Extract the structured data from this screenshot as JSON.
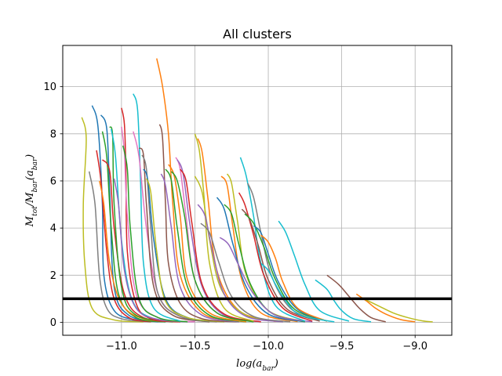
{
  "chart_data": {
    "type": "line",
    "title": "All clusters",
    "xlabel": "log(a_bar)",
    "ylabel": "M_tot/M_bar(a_bar)",
    "xlim": [
      -11.4,
      -8.75
    ],
    "ylim": [
      -0.55,
      11.75
    ],
    "grid": true,
    "legend": "none",
    "x_ticks": [
      -11.0,
      -10.5,
      -10.0,
      -9.5,
      -9.0
    ],
    "x_tick_labels": [
      "−11.0",
      "−10.5",
      "−10.0",
      "−9.5",
      "−9.0"
    ],
    "y_ticks": [
      0,
      2,
      4,
      6,
      8,
      10
    ],
    "y_tick_labels": [
      "0",
      "2",
      "4",
      "6",
      "8",
      "10"
    ],
    "reference_line": {
      "y": 1.0,
      "color": "#000000"
    },
    "colors": [
      "#1f77b4",
      "#ff7f0e",
      "#2ca02c",
      "#d62728",
      "#9467bd",
      "#8c564b",
      "#e377c2",
      "#7f7f7f",
      "#bcbd22",
      "#17becf"
    ],
    "series": [
      {
        "x": [
          -11.27,
          -11.24,
          -11.26,
          -11.25,
          -11.2,
          -11.05,
          -10.85
        ],
        "y": [
          8.7,
          7.8,
          5.0,
          2.5,
          0.6,
          0.1,
          0.02
        ],
        "color": "#bcbd22"
      },
      {
        "x": [
          -11.22,
          -11.18,
          -11.15,
          -11.1,
          -11.0,
          -10.8
        ],
        "y": [
          6.4,
          5.0,
          2.0,
          0.6,
          0.15,
          0.02
        ],
        "color": "#7f7f7f"
      },
      {
        "x": [
          -11.2,
          -11.16,
          -11.13,
          -11.12,
          -11.05,
          -10.9,
          -10.7
        ],
        "y": [
          9.2,
          8.3,
          5.0,
          2.0,
          0.5,
          0.1,
          0.02
        ],
        "color": "#1f77b4"
      },
      {
        "x": [
          -11.17,
          -11.14,
          -11.1,
          -11.05,
          -10.95,
          -10.8
        ],
        "y": [
          7.3,
          6.0,
          3.0,
          1.0,
          0.2,
          0.02
        ],
        "color": "#d62728"
      },
      {
        "x": [
          -11.14,
          -11.1,
          -11.08,
          -11.05,
          -10.95,
          -10.75
        ],
        "y": [
          8.8,
          8.2,
          5.5,
          1.5,
          0.3,
          0.02
        ],
        "color": "#1f77b4"
      },
      {
        "x": [
          -11.13,
          -11.1,
          -11.07,
          -11.02,
          -10.9,
          -10.7
        ],
        "y": [
          8.1,
          7.0,
          4.0,
          1.2,
          0.2,
          0.02
        ],
        "color": "#2ca02c"
      },
      {
        "x": [
          -11.15,
          -11.12,
          -11.08,
          -11.0,
          -10.85,
          -10.6
        ],
        "y": [
          6.0,
          5.0,
          2.5,
          0.8,
          0.15,
          0.02
        ],
        "color": "#ff7f0e"
      },
      {
        "x": [
          -11.13,
          -11.08,
          -11.05,
          -10.98,
          -10.85,
          -10.6
        ],
        "y": [
          6.9,
          6.4,
          4.0,
          1.2,
          0.2,
          0.02
        ],
        "color": "#d62728"
      },
      {
        "x": [
          -11.08,
          -11.06,
          -11.05,
          -11.0,
          -10.9,
          -10.65
        ],
        "y": [
          8.3,
          7.9,
          5.0,
          1.5,
          0.3,
          0.02
        ],
        "color": "#2ca02c"
      },
      {
        "x": [
          -11.07,
          -11.04,
          -11.0,
          -10.93,
          -10.8,
          -10.55
        ],
        "y": [
          8.2,
          7.0,
          3.5,
          1.0,
          0.2,
          0.02
        ],
        "color": "#17becf"
      },
      {
        "x": [
          -11.0,
          -10.98,
          -10.97,
          -10.96,
          -10.9,
          -10.8,
          -10.6
        ],
        "y": [
          9.1,
          8.4,
          6.5,
          3.0,
          0.8,
          0.15,
          0.02
        ],
        "color": "#d62728"
      },
      {
        "x": [
          -11.05,
          -11.02,
          -10.98,
          -10.9,
          -10.75,
          -10.5
        ],
        "y": [
          6.1,
          5.0,
          2.2,
          0.6,
          0.12,
          0.02
        ],
        "color": "#9467bd"
      },
      {
        "x": [
          -11.0,
          -10.98,
          -10.96,
          -10.9,
          -10.75,
          -10.5
        ],
        "y": [
          8.3,
          7.2,
          4.5,
          1.2,
          0.2,
          0.02
        ],
        "color": "#e377c2"
      },
      {
        "x": [
          -10.99,
          -10.96,
          -10.94,
          -10.88,
          -10.75,
          -10.55
        ],
        "y": [
          7.5,
          6.5,
          4.0,
          1.0,
          0.2,
          0.02
        ],
        "color": "#2ca02c"
      },
      {
        "x": [
          -10.92,
          -10.89,
          -10.87,
          -10.85,
          -10.78,
          -10.6
        ],
        "y": [
          9.7,
          9.0,
          6.0,
          2.5,
          0.6,
          0.05
        ],
        "color": "#17becf"
      },
      {
        "x": [
          -10.92,
          -10.88,
          -10.83,
          -10.75,
          -10.6,
          -10.35
        ],
        "y": [
          8.1,
          7.0,
          4.0,
          1.2,
          0.25,
          0.02
        ],
        "color": "#e377c2"
      },
      {
        "x": [
          -10.88,
          -10.85,
          -10.83,
          -10.78,
          -10.65,
          -10.4
        ],
        "y": [
          7.4,
          7.1,
          5.0,
          1.5,
          0.3,
          0.02
        ],
        "color": "#8c564b"
      },
      {
        "x": [
          -10.86,
          -10.83,
          -10.8,
          -10.75,
          -10.6,
          -10.35
        ],
        "y": [
          7.1,
          6.5,
          4.0,
          1.2,
          0.25,
          0.02
        ],
        "color": "#7f7f7f"
      },
      {
        "x": [
          -10.85,
          -10.82,
          -10.78,
          -10.7,
          -10.55,
          -10.3
        ],
        "y": [
          6.5,
          6.0,
          3.5,
          1.0,
          0.2,
          0.02
        ],
        "color": "#1f77b4"
      },
      {
        "x": [
          -10.83,
          -10.8,
          -10.76,
          -10.7,
          -10.55,
          -10.3
        ],
        "y": [
          6.1,
          5.5,
          3.0,
          0.9,
          0.2,
          0.02
        ],
        "color": "#bcbd22"
      },
      {
        "x": [
          -10.76,
          -10.72,
          -10.68,
          -10.65,
          -10.6,
          -10.45,
          -10.2
        ],
        "y": [
          11.2,
          10.0,
          8.0,
          5.0,
          2.0,
          0.4,
          0.02
        ],
        "color": "#ff7f0e"
      },
      {
        "x": [
          -10.74,
          -10.72,
          -10.7,
          -10.68,
          -10.6,
          -10.45,
          -10.2
        ],
        "y": [
          8.4,
          7.8,
          5.0,
          2.5,
          0.8,
          0.15,
          0.02
        ],
        "color": "#8c564b"
      },
      {
        "x": [
          -10.73,
          -10.7,
          -10.66,
          -10.6,
          -10.45,
          -10.2
        ],
        "y": [
          6.3,
          5.8,
          4.0,
          1.5,
          0.3,
          0.02
        ],
        "color": "#9467bd"
      },
      {
        "x": [
          -10.7,
          -10.66,
          -10.62,
          -10.55,
          -10.4,
          -10.15
        ],
        "y": [
          6.5,
          6.0,
          4.0,
          1.5,
          0.3,
          0.02
        ],
        "color": "#2ca02c"
      },
      {
        "x": [
          -10.68,
          -10.64,
          -10.6,
          -10.55,
          -10.4,
          -10.15
        ],
        "y": [
          6.7,
          6.2,
          4.5,
          1.8,
          0.4,
          0.02
        ],
        "color": "#ff7f0e"
      },
      {
        "x": [
          -10.63,
          -10.6,
          -10.56,
          -10.5,
          -10.35,
          -10.1
        ],
        "y": [
          7.0,
          6.5,
          4.5,
          1.8,
          0.4,
          0.02
        ],
        "color": "#e377c2"
      },
      {
        "x": [
          -10.62,
          -10.58,
          -10.53,
          -10.45,
          -10.3,
          -10.05
        ],
        "y": [
          6.9,
          6.3,
          4.0,
          1.5,
          0.3,
          0.02
        ],
        "color": "#9467bd"
      },
      {
        "x": [
          -10.6,
          -10.56,
          -10.52,
          -10.45,
          -10.3,
          -10.05
        ],
        "y": [
          6.5,
          6.0,
          4.2,
          1.6,
          0.35,
          0.02
        ],
        "color": "#d62728"
      },
      {
        "x": [
          -10.66,
          -10.62,
          -10.57,
          -10.5,
          -10.35,
          -10.1
        ],
        "y": [
          6.4,
          6.0,
          4.5,
          1.8,
          0.4,
          0.02
        ],
        "color": "#2ca02c"
      },
      {
        "x": [
          -10.5,
          -10.47,
          -10.44,
          -10.4,
          -10.3,
          -10.1
        ],
        "y": [
          8.0,
          7.3,
          5.5,
          2.5,
          0.6,
          0.05
        ],
        "color": "#bcbd22"
      },
      {
        "x": [
          -10.48,
          -10.45,
          -10.41,
          -10.35,
          -10.2,
          -9.95
        ],
        "y": [
          7.8,
          7.2,
          5.2,
          2.2,
          0.5,
          0.03
        ],
        "color": "#ff7f0e"
      },
      {
        "x": [
          -10.5,
          -10.45,
          -10.4,
          -10.32,
          -10.15,
          -9.9
        ],
        "y": [
          6.2,
          5.5,
          3.5,
          1.4,
          0.3,
          0.02
        ],
        "color": "#bcbd22"
      },
      {
        "x": [
          -10.48,
          -10.43,
          -10.38,
          -10.3,
          -10.15,
          -9.9
        ],
        "y": [
          5.0,
          4.5,
          3.0,
          1.2,
          0.25,
          0.02
        ],
        "color": "#9467bd"
      },
      {
        "x": [
          -10.46,
          -10.4,
          -10.34,
          -10.25,
          -10.1,
          -9.85
        ],
        "y": [
          4.2,
          3.8,
          2.6,
          1.1,
          0.25,
          0.02
        ],
        "color": "#7f7f7f"
      },
      {
        "x": [
          -10.32,
          -10.28,
          -10.24,
          -10.18,
          -10.05,
          -9.8
        ],
        "y": [
          6.2,
          5.8,
          4.0,
          1.8,
          0.4,
          0.03
        ],
        "color": "#ff7f0e"
      },
      {
        "x": [
          -10.28,
          -10.25,
          -10.21,
          -10.15,
          -10.0,
          -9.75
        ],
        "y": [
          6.3,
          5.9,
          4.3,
          2.0,
          0.5,
          0.03
        ],
        "color": "#bcbd22"
      },
      {
        "x": [
          -10.35,
          -10.3,
          -10.24,
          -10.15,
          -10.0,
          -9.75
        ],
        "y": [
          5.3,
          4.8,
          3.3,
          1.5,
          0.35,
          0.02
        ],
        "color": "#1f77b4"
      },
      {
        "x": [
          -10.3,
          -10.25,
          -10.2,
          -10.12,
          -9.98,
          -9.75
        ],
        "y": [
          5.0,
          4.6,
          3.3,
          1.6,
          0.4,
          0.03
        ],
        "color": "#2ca02c"
      },
      {
        "x": [
          -10.33,
          -10.27,
          -10.2,
          -10.1,
          -9.95,
          -9.7
        ],
        "y": [
          3.6,
          3.3,
          2.4,
          1.2,
          0.3,
          0.02
        ],
        "color": "#9467bd"
      },
      {
        "x": [
          -10.19,
          -10.15,
          -10.1,
          -10.05,
          -9.95,
          -9.75
        ],
        "y": [
          7.0,
          6.2,
          4.5,
          2.5,
          0.7,
          0.05
        ],
        "color": "#17becf"
      },
      {
        "x": [
          -10.2,
          -10.16,
          -10.1,
          -10.03,
          -9.9,
          -9.7
        ],
        "y": [
          5.5,
          5.0,
          3.7,
          2.0,
          0.6,
          0.05
        ],
        "color": "#d62728"
      },
      {
        "x": [
          -10.14,
          -10.1,
          -10.05,
          -9.98,
          -9.85,
          -9.65
        ],
        "y": [
          5.9,
          5.3,
          3.8,
          2.0,
          0.6,
          0.05
        ],
        "color": "#7f7f7f"
      },
      {
        "x": [
          -10.18,
          -10.13,
          -10.07,
          -10.0,
          -9.87,
          -9.65
        ],
        "y": [
          4.8,
          4.4,
          3.3,
          1.8,
          0.55,
          0.05
        ],
        "color": "#8c564b"
      },
      {
        "x": [
          -10.16,
          -10.1,
          -10.03,
          -9.95,
          -9.82,
          -9.6
        ],
        "y": [
          4.6,
          4.2,
          3.2,
          1.8,
          0.55,
          0.05
        ],
        "color": "#2ca02c"
      },
      {
        "x": [
          -10.1,
          -10.05,
          -10.0,
          -9.93,
          -9.8,
          -9.6
        ],
        "y": [
          4.1,
          3.8,
          2.9,
          1.7,
          0.55,
          0.05
        ],
        "color": "#1f77b4"
      },
      {
        "x": [
          -10.05,
          -10.0,
          -9.95,
          -9.9,
          -9.8,
          -9.6
        ],
        "y": [
          3.7,
          3.4,
          2.7,
          1.7,
          0.6,
          0.05
        ],
        "color": "#ff7f0e"
      },
      {
        "x": [
          -9.93,
          -9.88,
          -9.82,
          -9.75,
          -9.65,
          -9.45
        ],
        "y": [
          4.3,
          3.8,
          2.8,
          1.6,
          0.5,
          0.05
        ],
        "color": "#17becf"
      },
      {
        "x": [
          -10.05,
          -10.0,
          -9.95,
          -9.88,
          -9.78,
          -9.55
        ],
        "y": [
          2.5,
          2.2,
          1.6,
          0.9,
          0.3,
          0.02
        ],
        "color": "#17becf"
      },
      {
        "x": [
          -9.68,
          -9.6,
          -9.55,
          -9.5,
          -9.42,
          -9.3
        ],
        "y": [
          1.8,
          1.4,
          0.9,
          0.5,
          0.15,
          0.02
        ],
        "color": "#17becf"
      },
      {
        "x": [
          -9.6,
          -9.52,
          -9.45,
          -9.38,
          -9.3,
          -9.2
        ],
        "y": [
          2.0,
          1.6,
          1.1,
          0.6,
          0.2,
          0.02
        ],
        "color": "#8c564b"
      },
      {
        "x": [
          -9.4,
          -9.33,
          -9.27,
          -9.2,
          -9.1,
          -9.0
        ],
        "y": [
          1.2,
          0.9,
          0.6,
          0.35,
          0.12,
          0.02
        ],
        "color": "#ff7f0e"
      },
      {
        "x": [
          -9.35,
          -9.25,
          -9.15,
          -9.05,
          -8.95,
          -8.88
        ],
        "y": [
          1.0,
          0.7,
          0.4,
          0.2,
          0.06,
          0.02
        ],
        "color": "#bcbd22"
      }
    ]
  }
}
